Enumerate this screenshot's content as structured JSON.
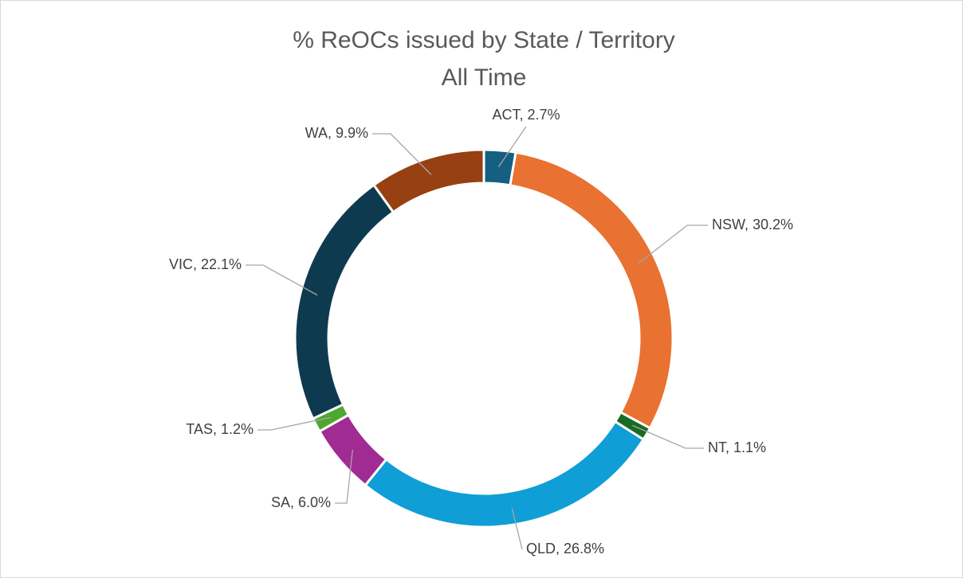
{
  "chart_data": {
    "type": "donut",
    "title": "% ReOCs issued by State / Territory",
    "subtitle": "All Time",
    "categories": [
      "ACT",
      "NSW",
      "NT",
      "QLD",
      "SA",
      "TAS",
      "VIC",
      "WA"
    ],
    "values": [
      2.7,
      30.2,
      1.1,
      26.8,
      6.0,
      1.2,
      22.1,
      9.9
    ],
    "value_labels": [
      "ACT, 2.7%",
      "NSW, 30.2%",
      "NT, 1.1%",
      "QLD, 26.8%",
      "SA, 6.0%",
      "TAS, 1.2%",
      "VIC, 22.1%",
      "WA, 9.9%"
    ],
    "colors": [
      "#156082",
      "#e97132",
      "#196b24",
      "#0f9ed5",
      "#a02b93",
      "#4ea72e",
      "#0e3a4f",
      "#974011"
    ]
  }
}
